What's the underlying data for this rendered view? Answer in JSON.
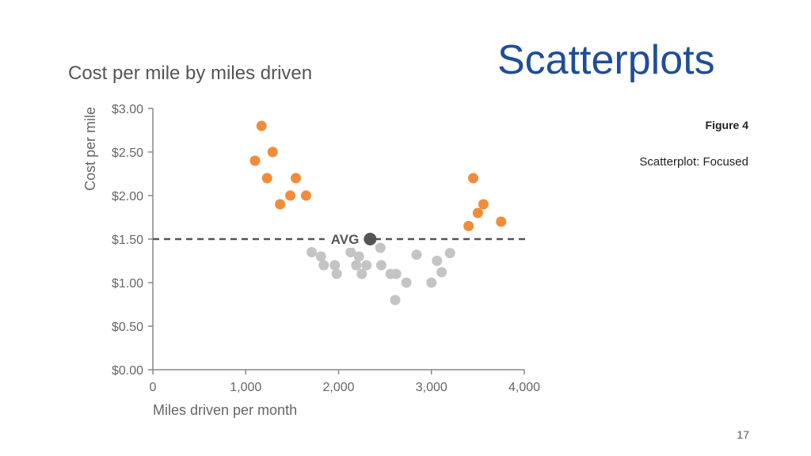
{
  "slide": {
    "title": "Scatterplots",
    "figure_label": "Figure 4",
    "figure_caption": "Scatterplot: Focused",
    "page_number": "17"
  },
  "chart_data": {
    "type": "scatter",
    "title": "Cost per mile by miles driven",
    "xlabel": "Miles driven per month",
    "ylabel": "Cost per mile",
    "xlim": [
      0,
      4000
    ],
    "ylim": [
      0,
      3
    ],
    "x_ticks": [
      {
        "value": 0,
        "label": "0"
      },
      {
        "value": 1000,
        "label": "1,000"
      },
      {
        "value": 2000,
        "label": "2,000"
      },
      {
        "value": 3000,
        "label": "3,000"
      },
      {
        "value": 4000,
        "label": "4,000"
      }
    ],
    "y_ticks": [
      {
        "value": 0,
        "label": "$0.00"
      },
      {
        "value": 0.5,
        "label": "$0.50"
      },
      {
        "value": 1,
        "label": "$1.00"
      },
      {
        "value": 1.5,
        "label": "$1.50"
      },
      {
        "value": 2,
        "label": "$2.00"
      },
      {
        "value": 2.5,
        "label": "$2.50"
      },
      {
        "value": 3,
        "label": "$3.00"
      }
    ],
    "grid": false,
    "reference_line": {
      "y": 1.5,
      "style": "dashed"
    },
    "average_point": {
      "label": "AVG",
      "x": 2340,
      "y": 1.5
    },
    "colors": {
      "highlight": "#f28c3a",
      "muted": "#c4c4c4",
      "average": "#555555",
      "axis": "#888888"
    },
    "series": [
      {
        "group": "highlight",
        "points": [
          {
            "x": 1100,
            "y": 2.4
          },
          {
            "x": 1170,
            "y": 2.8
          },
          {
            "x": 1230,
            "y": 2.2
          },
          {
            "x": 1290,
            "y": 2.5
          },
          {
            "x": 1370,
            "y": 1.9
          },
          {
            "x": 1480,
            "y": 2.0
          },
          {
            "x": 1540,
            "y": 2.2
          },
          {
            "x": 1650,
            "y": 2.0
          },
          {
            "x": 3400,
            "y": 1.65
          },
          {
            "x": 3450,
            "y": 2.2
          },
          {
            "x": 3500,
            "y": 1.8
          },
          {
            "x": 3560,
            "y": 1.9
          },
          {
            "x": 3750,
            "y": 1.7
          }
        ]
      },
      {
        "group": "muted",
        "points": [
          {
            "x": 1710,
            "y": 1.35
          },
          {
            "x": 1810,
            "y": 1.3
          },
          {
            "x": 1840,
            "y": 1.2
          },
          {
            "x": 1960,
            "y": 1.2
          },
          {
            "x": 1980,
            "y": 1.1
          },
          {
            "x": 2130,
            "y": 1.35
          },
          {
            "x": 2190,
            "y": 1.2
          },
          {
            "x": 2220,
            "y": 1.3
          },
          {
            "x": 2250,
            "y": 1.1
          },
          {
            "x": 2300,
            "y": 1.2
          },
          {
            "x": 2450,
            "y": 1.4
          },
          {
            "x": 2460,
            "y": 1.2
          },
          {
            "x": 2560,
            "y": 1.1
          },
          {
            "x": 2620,
            "y": 1.1
          },
          {
            "x": 2610,
            "y": 0.8
          },
          {
            "x": 2730,
            "y": 1.0
          },
          {
            "x": 2840,
            "y": 1.32
          },
          {
            "x": 3000,
            "y": 1.0
          },
          {
            "x": 3060,
            "y": 1.25
          },
          {
            "x": 3110,
            "y": 1.12
          },
          {
            "x": 3200,
            "y": 1.34
          }
        ]
      }
    ]
  }
}
